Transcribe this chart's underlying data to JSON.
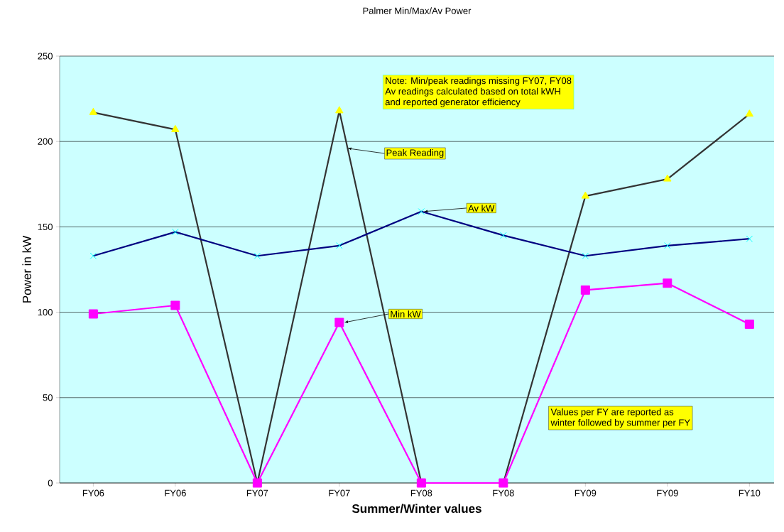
{
  "chart_data": {
    "type": "line",
    "title": "Palmer Min/Max/Av Power",
    "xlabel": "Summer/Winter values",
    "ylabel": "Power in kW",
    "categories": [
      "FY06",
      "FY06",
      "FY07",
      "FY07",
      "FY08",
      "FY08",
      "FY09",
      "FY09",
      "FY10"
    ],
    "series": [
      {
        "name": "Peak Reading",
        "color": "#333333",
        "marker": "triangle",
        "values": [
          217,
          207,
          0,
          218,
          0,
          0,
          168,
          178,
          216
        ]
      },
      {
        "name": "Av kW",
        "color": "#000080",
        "marker": "cross",
        "values": [
          133,
          147,
          133,
          139,
          159,
          145,
          133,
          139,
          143
        ]
      },
      {
        "name": "Min kW",
        "color": "#ff00ff",
        "marker": "square",
        "values": [
          99,
          104,
          0,
          94,
          0,
          0,
          113,
          117,
          93
        ]
      }
    ],
    "ylim": [
      0,
      250
    ],
    "yticks": [
      0,
      50,
      100,
      150,
      200,
      250
    ],
    "grid": "y",
    "annotations": [
      "Note: Min/peak readings missing FY07, FY08",
      "Av readings calculated based on total kWH",
      "and reported generator efficiency",
      "Values per FY are reported as",
      "winter followed by summer per FY"
    ]
  }
}
